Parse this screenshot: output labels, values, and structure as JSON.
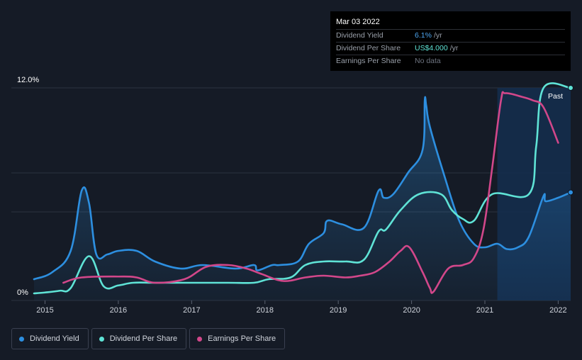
{
  "tooltip": {
    "date": "Mar 03 2022",
    "rows": [
      {
        "label": "Dividend Yield",
        "value": "6.1%",
        "unit": "/yr",
        "color": "#4ea6f0"
      },
      {
        "label": "Dividend Per Share",
        "value": "US$4.000",
        "unit": "/yr",
        "color": "#5fe3d6"
      },
      {
        "label": "Earnings Per Share",
        "value": "No data",
        "unit": "",
        "color": "#6e7480"
      }
    ]
  },
  "past_label": "Past",
  "legend": [
    {
      "label": "Dividend Yield",
      "color": "#2d8fe0"
    },
    {
      "label": "Dividend Per Share",
      "color": "#5fe3d6"
    },
    {
      "label": "Earnings Per Share",
      "color": "#d2478a"
    }
  ],
  "chart_data": {
    "type": "line",
    "title": "",
    "xlabel": "",
    "ylabel": "",
    "ylim": [
      0,
      12
    ],
    "xlim": [
      2014.85,
      2022.17
    ],
    "y_tick_labels": [
      "0%",
      "12.0%"
    ],
    "x_ticks": [
      2015,
      2016,
      2017,
      2018,
      2019,
      2020,
      2021,
      2022
    ],
    "x_tick_labels": [
      "2015",
      "2016",
      "2017",
      "2018",
      "2019",
      "2020",
      "2021",
      "2022"
    ],
    "gridlines_y": [
      0,
      5,
      7.2,
      12
    ],
    "past_region_start": 2021.17,
    "series": [
      {
        "name": "Dividend Yield",
        "color": "#2d8fe0",
        "fill": true,
        "x": [
          2014.85,
          2015.1,
          2015.35,
          2015.5,
          2015.6,
          2015.7,
          2015.85,
          2016.0,
          2016.25,
          2016.5,
          2016.85,
          2017.15,
          2017.6,
          2017.85,
          2017.9,
          2018.1,
          2018.2,
          2018.45,
          2018.6,
          2018.8,
          2018.85,
          2019.05,
          2019.35,
          2019.55,
          2019.62,
          2019.75,
          2019.95,
          2020.15,
          2020.18,
          2020.2,
          2020.25,
          2020.45,
          2020.65,
          2020.85,
          2021.0,
          2021.17,
          2021.3,
          2021.45,
          2021.6,
          2021.8,
          2021.83,
          2022.0,
          2022.17
        ],
        "y": [
          1.2,
          1.6,
          2.8,
          6.2,
          5.5,
          2.6,
          2.6,
          2.8,
          2.8,
          2.2,
          1.8,
          2.0,
          1.8,
          2.0,
          1.7,
          2.0,
          2.0,
          2.2,
          3.2,
          3.8,
          4.5,
          4.3,
          4.1,
          6.2,
          5.8,
          6.0,
          7.2,
          8.5,
          11.3,
          11.0,
          9.8,
          7.0,
          4.5,
          3.2,
          3.0,
          3.2,
          2.9,
          3.0,
          3.6,
          5.9,
          5.6,
          5.8,
          6.1
        ]
      },
      {
        "name": "Dividend Per Share",
        "color": "#5fe3d6",
        "fill": false,
        "x": [
          2014.85,
          2015.0,
          2015.2,
          2015.35,
          2015.6,
          2015.8,
          2016.0,
          2016.2,
          2016.5,
          2017.0,
          2017.5,
          2017.85,
          2018.05,
          2018.35,
          2018.55,
          2018.8,
          2019.1,
          2019.35,
          2019.55,
          2019.65,
          2019.85,
          2020.1,
          2020.4,
          2020.55,
          2020.7,
          2020.85,
          2021.1,
          2021.6,
          2021.7,
          2021.8,
          2022.17
        ],
        "y": [
          0.4,
          0.45,
          0.55,
          0.7,
          2.5,
          0.8,
          0.85,
          1.0,
          1.0,
          1.0,
          1.0,
          1.0,
          1.2,
          1.3,
          2.0,
          2.2,
          2.2,
          2.3,
          3.9,
          4.0,
          5.1,
          6.0,
          6.0,
          5.1,
          4.6,
          4.5,
          6.0,
          6.0,
          8.7,
          12.0,
          12.0
        ]
      },
      {
        "name": "Earnings Per Share",
        "color": "#d2478a",
        "fill": false,
        "x": [
          2015.25,
          2015.5,
          2016.0,
          2016.25,
          2016.5,
          2016.9,
          2017.2,
          2017.5,
          2017.75,
          2017.95,
          2018.25,
          2018.55,
          2018.8,
          2019.1,
          2019.3,
          2019.5,
          2019.7,
          2019.85,
          2019.97,
          2020.15,
          2020.25,
          2020.3,
          2020.5,
          2020.7,
          2020.85,
          2020.98,
          2021.1,
          2021.22,
          2021.28,
          2021.5,
          2021.65,
          2021.8,
          2022.0
        ],
        "y": [
          1.0,
          1.3,
          1.35,
          1.3,
          1.0,
          1.2,
          1.9,
          2.0,
          1.8,
          1.5,
          1.1,
          1.3,
          1.4,
          1.3,
          1.4,
          1.6,
          2.2,
          2.8,
          3.0,
          1.6,
          0.7,
          0.5,
          1.8,
          2.0,
          2.4,
          4.0,
          7.5,
          11.3,
          11.7,
          11.5,
          11.3,
          10.9,
          8.9
        ]
      }
    ]
  }
}
